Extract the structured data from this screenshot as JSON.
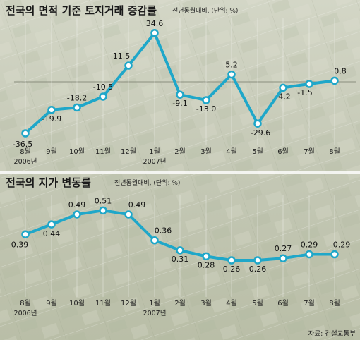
{
  "source": "자료: 건설교통부",
  "colors": {
    "line": "#1fa7c9",
    "marker_fill": "#ffffff",
    "background": "#c9cdbc"
  },
  "chart_data": [
    {
      "type": "line",
      "title": "전국의 면적 기준 토지거래 증감률",
      "subtitle": "전년동월대비, (단위: %)",
      "categories": [
        "8월",
        "9월",
        "10월",
        "11월",
        "12월",
        "1월",
        "2월",
        "3월",
        "4월",
        "5월",
        "6월",
        "7월",
        "8월"
      ],
      "year_labels": [
        {
          "text": "2006년",
          "category_index": 0
        },
        {
          "text": "2007년",
          "category_index": 5
        }
      ],
      "series": [
        {
          "values": [
            -36.5,
            -19.9,
            -18.2,
            -10.5,
            11.5,
            34.6,
            -9.1,
            -13.0,
            5.2,
            -29.6,
            -4.2,
            -1.5,
            0.8
          ],
          "labels": [
            "-36.5",
            "-19.9",
            "-18.2",
            "-10.5",
            "11.5",
            "34.6",
            "-9.1",
            "-13.0",
            "5.2",
            "-29.6",
            "-4.2",
            "-1.5",
            "0.8"
          ]
        }
      ],
      "ylim": [
        -40,
        40
      ],
      "reference_line": 0
    },
    {
      "type": "line",
      "title": "전국의 지가 변동률",
      "subtitle": "전년동월대비, (단위: %)",
      "categories": [
        "8월",
        "9월",
        "10월",
        "11월",
        "12월",
        "1월",
        "2월",
        "3월",
        "4월",
        "5월",
        "6월",
        "7월",
        "8월"
      ],
      "year_labels": [
        {
          "text": "2006년",
          "category_index": 0
        },
        {
          "text": "2007년",
          "category_index": 5
        }
      ],
      "series": [
        {
          "values": [
            0.39,
            0.44,
            0.49,
            0.51,
            0.49,
            0.36,
            0.31,
            0.28,
            0.26,
            0.26,
            0.27,
            0.29,
            0.29
          ],
          "labels": [
            "0.39",
            "0.44",
            "0.49",
            "0.51",
            "0.49",
            "0.36",
            "0.31",
            "0.28",
            "0.26",
            "0.26",
            "0.27",
            "0.29",
            "0.29"
          ]
        }
      ],
      "ylim": [
        0.2,
        0.55
      ]
    }
  ]
}
